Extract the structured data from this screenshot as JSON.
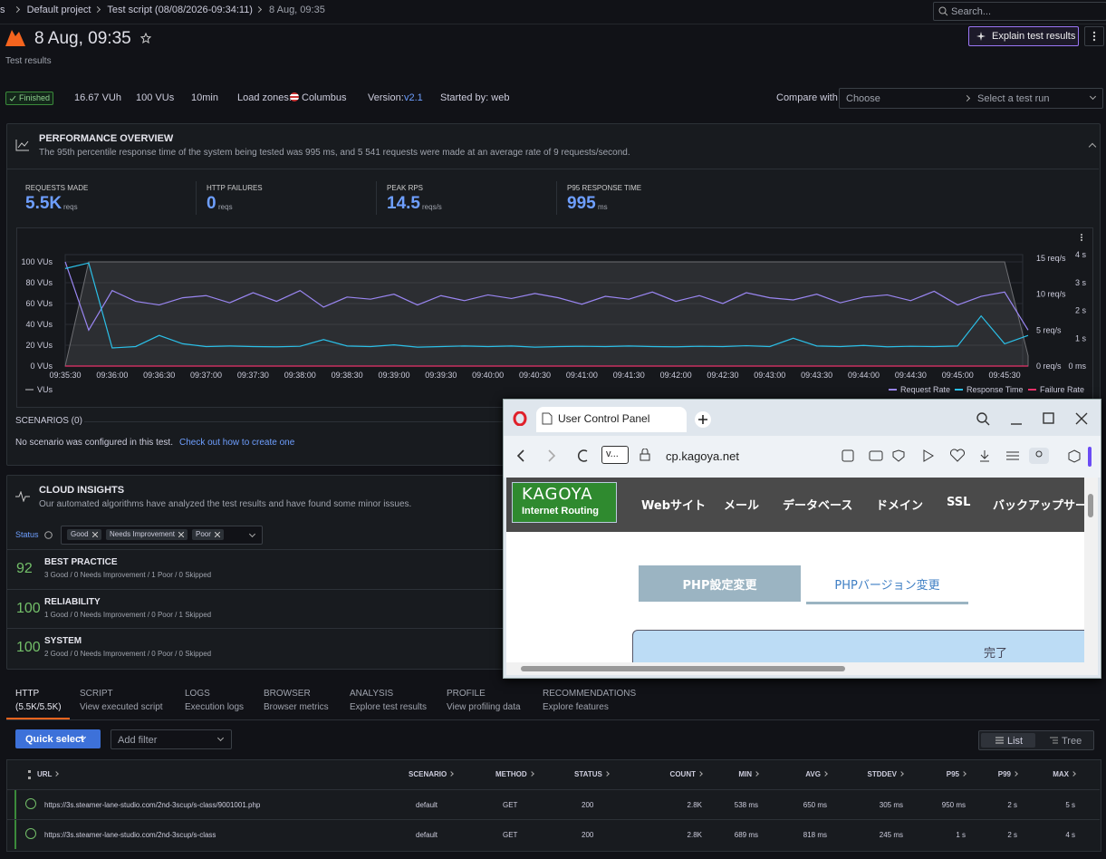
{
  "breadcrumb": [
    "s",
    "Default project",
    "Test script (08/08/2026-09:34:11)",
    "8 Aug, 09:35"
  ],
  "search_placeholder": "Search...",
  "header": {
    "title": "8 Aug, 09:35",
    "subtitle": "Test results",
    "explain_button": "Explain test results"
  },
  "status": {
    "finished": "Finished",
    "vuh": "16.67 VUh",
    "vus": "100 VUs",
    "duration": "10min",
    "load_zones_label": "Load zones:",
    "load_zone": "Columbus",
    "version_label": "Version:",
    "version": "v2.1",
    "started_by": "Started by: web"
  },
  "compare": {
    "label": "Compare with",
    "choose": "Choose",
    "select_run": "Select a test run"
  },
  "overview": {
    "title": "PERFORMANCE OVERVIEW",
    "description": "The 95th percentile response time of the system being tested was 995 ms, and 5 541 requests were made at an average rate of 9 requests/second.",
    "metrics": [
      {
        "label": "REQUESTS MADE",
        "value": "5.5K",
        "unit": "reqs"
      },
      {
        "label": "HTTP FAILURES",
        "value": "0",
        "unit": "reqs"
      },
      {
        "label": "PEAK RPS",
        "value": "14.5",
        "unit": "reqs/s"
      },
      {
        "label": "P95 RESPONSE TIME",
        "value": "995",
        "unit": "ms"
      }
    ]
  },
  "chart_data": {
    "type": "line",
    "x": [
      "09:35:30",
      null,
      "09:36:00",
      null,
      "09:36:30",
      null,
      "09:37:00",
      null,
      "09:37:30",
      null,
      "09:38:00",
      null,
      "09:38:30",
      null,
      "09:39:00",
      null,
      "09:39:30",
      null,
      "09:40:00",
      null,
      "09:40:30",
      null,
      "09:41:00",
      null,
      "09:41:30",
      null,
      "09:42:00",
      null,
      "09:42:30",
      null,
      "09:43:00",
      null,
      "09:43:30",
      null,
      "09:44:00",
      null,
      "09:44:30",
      null,
      "09:45:00",
      null,
      "09:45:30",
      null
    ],
    "ylim": [
      0,
      107
    ],
    "yticks": [
      {
        "value": 0,
        "label": "0 VUs"
      },
      {
        "value": 20,
        "label": "20 VUs"
      },
      {
        "value": 40,
        "label": "40 VUs"
      },
      {
        "value": 60,
        "label": "60 VUs"
      },
      {
        "value": 80,
        "label": "80 VUs"
      },
      {
        "value": 100,
        "label": "100 VUs"
      }
    ],
    "y2lim": [
      0,
      15.5
    ],
    "y2ticks": [
      {
        "value": 0,
        "label": "0 req/s"
      },
      {
        "value": 5,
        "label": "5 req/s"
      },
      {
        "value": 10,
        "label": "10 req/s"
      },
      {
        "value": 15,
        "label": "15 req/s"
      }
    ],
    "y3lim": [
      0,
      4000
    ],
    "y3ticks": [
      {
        "value": 0,
        "label": "0 ms"
      },
      {
        "value": 1000,
        "label": "1 s"
      },
      {
        "value": 2000,
        "label": "2 s"
      },
      {
        "value": 3000,
        "label": "3 s"
      },
      {
        "value": 4000,
        "label": "4 s"
      }
    ],
    "grid": true,
    "series": [
      {
        "name": "VUs",
        "color": "#6e6f73",
        "area": true,
        "values": [
          0,
          100,
          100,
          100,
          100,
          100,
          100,
          100,
          100,
          100,
          100,
          100,
          100,
          100,
          100,
          100,
          100,
          100,
          100,
          100,
          100,
          100,
          100,
          100,
          100,
          100,
          100,
          100,
          100,
          100,
          100,
          100,
          100,
          100,
          100,
          100,
          100,
          100,
          100,
          100,
          100,
          10
        ]
      },
      {
        "name": "Request Rate",
        "color": "#9a86f2",
        "axis": "y2",
        "values": [
          14.5,
          5,
          10.5,
          9,
          8.5,
          9.5,
          9.8,
          8.8,
          10.2,
          9,
          10.5,
          8.2,
          9.6,
          9.3,
          10,
          8.5,
          9.8,
          9.1,
          9.9,
          9.4,
          10.1,
          9.5,
          8.6,
          9.7,
          9.3,
          10.3,
          9,
          9.8,
          8.7,
          10.2,
          9.5,
          9.2,
          10,
          8.8,
          9.6,
          9.9,
          9.1,
          10.4,
          8.5,
          9.7,
          10.3,
          5
        ]
      },
      {
        "name": "Response Time",
        "color": "#2bc0e8",
        "axis": "y3",
        "values": [
          3500,
          3700,
          650,
          700,
          1100,
          800,
          700,
          720,
          700,
          690,
          710,
          950,
          720,
          700,
          760,
          680,
          700,
          720,
          700,
          720,
          680,
          700,
          710,
          700,
          720,
          700,
          690,
          710,
          700,
          730,
          700,
          1000,
          720,
          700,
          740,
          690,
          710,
          700,
          720,
          1800,
          800,
          1100
        ]
      },
      {
        "name": "Failure Rate",
        "color": "#e8326a",
        "axis": "y2",
        "values": [
          0,
          0,
          0,
          0,
          0,
          0,
          0,
          0,
          0,
          0,
          0,
          0,
          0,
          0,
          0,
          0,
          0,
          0,
          0,
          0,
          0,
          0,
          0,
          0,
          0,
          0,
          0,
          0,
          0,
          0,
          0,
          0,
          0,
          0,
          0,
          0,
          0,
          0,
          0,
          0,
          0,
          0
        ]
      }
    ]
  },
  "scenarios": {
    "title": "SCENARIOS (0)",
    "text": "No scenario was configured in this test.",
    "link": "Check out how to create one"
  },
  "insights": {
    "title": "CLOUD INSIGHTS",
    "description": "Our automated algorithms have analyzed the test results and have found some minor issues.",
    "status_label": "Status",
    "chips": [
      "Good",
      "Needs Improvement",
      "Poor"
    ],
    "rows": [
      {
        "score": "92",
        "name": "BEST PRACTICE",
        "detail": "3 Good / 0 Needs Improvement / 1 Poor / 0 Skipped"
      },
      {
        "score": "100",
        "name": "RELIABILITY",
        "detail": "1 Good / 0 Needs Improvement / 0 Poor / 1 Skipped"
      },
      {
        "score": "100",
        "name": "SYSTEM",
        "detail": "2 Good / 0 Needs Improvement / 0 Poor / 0 Skipped"
      }
    ]
  },
  "tabs": [
    {
      "title": "HTTP",
      "subtitle": "(5.5K/5.5K)"
    },
    {
      "title": "SCRIPT",
      "subtitle": "View executed script"
    },
    {
      "title": "LOGS",
      "subtitle": "Execution logs"
    },
    {
      "title": "BROWSER",
      "subtitle": "Browser metrics"
    },
    {
      "title": "ANALYSIS",
      "subtitle": "Explore test results"
    },
    {
      "title": "PROFILE",
      "subtitle": "View profiling data"
    },
    {
      "title": "RECOMMENDATIONS",
      "subtitle": "Explore features"
    }
  ],
  "toolbar": {
    "quick_select": "Quick select",
    "add_filter": "Add filter",
    "list": "List",
    "tree": "Tree"
  },
  "table": {
    "columns": [
      "URL",
      "SCENARIO",
      "METHOD",
      "STATUS",
      "COUNT",
      "MIN",
      "AVG",
      "STDDEV",
      "P95",
      "P99",
      "MAX"
    ],
    "rows": [
      [
        "https://3s.steamer-lane-studio.com/2nd-3scup/s-class/9001001.php",
        "default",
        "GET",
        "200",
        "2.8K",
        "538 ms",
        "650 ms",
        "305 ms",
        "950 ms",
        "2 s",
        "5 s"
      ],
      [
        "https://3s.steamer-lane-studio.com/2nd-3scup/s-class",
        "default",
        "GET",
        "200",
        "2.8K",
        "689 ms",
        "818 ms",
        "245 ms",
        "1 s",
        "2 s",
        "4 s"
      ]
    ]
  },
  "browser": {
    "tab_title": "User Control Panel",
    "address_short": "v...",
    "url": "cp.kagoya.net",
    "logo_main": "KAGOYA",
    "logo_sub": "Internet Routing",
    "nav": [
      "Webサイト",
      "メール",
      "データベース",
      "ドメイン",
      "SSL",
      "バックアップサービス"
    ],
    "tabs": [
      "PHP設定変更",
      "PHPバージョン変更"
    ],
    "done": "完了"
  }
}
